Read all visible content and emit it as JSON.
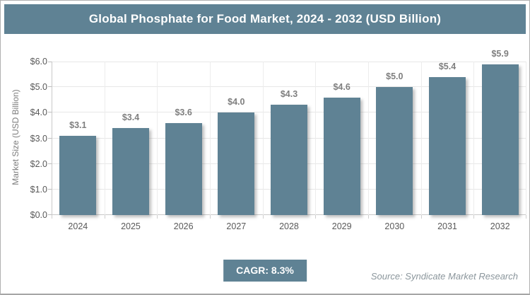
{
  "header": {
    "title": "Global Phosphate for Food Market, 2024 - 2032 (USD Billion)"
  },
  "chart_data": {
    "type": "bar",
    "title": "Global Phosphate for Food Market, 2024 - 2032 (USD Billion)",
    "categories": [
      "2024",
      "2025",
      "2026",
      "2027",
      "2028",
      "2029",
      "2030",
      "2031",
      "2032"
    ],
    "values": [
      3.1,
      3.4,
      3.6,
      4.0,
      4.3,
      4.6,
      5.0,
      5.4,
      5.9
    ],
    "value_labels": [
      "$3.1",
      "$3.4",
      "$3.6",
      "$4.0",
      "$4.3",
      "$4.6",
      "$5.0",
      "$5.4",
      "$5.9"
    ],
    "xlabel": "",
    "ylabel": "Market Size (USD Billion)",
    "ylim": [
      0,
      6
    ],
    "ytick_labels": [
      "$0.0",
      "$1.0",
      "$2.0",
      "$3.0",
      "$4.0",
      "$5.0",
      "$6.0"
    ],
    "grid": true,
    "legend": false,
    "bar_color": "#5f8294"
  },
  "footer": {
    "cagr_label": "CAGR: 8.3%",
    "source": "Source: Syndicate Market Research"
  },
  "colors": {
    "accent_slate": "#5f8294",
    "grid_line": "#e7e7e7",
    "axis_line": "#c9c9c9",
    "tick_text": "#595959",
    "value_label_text": "#7f7f7f",
    "source_text": "#8b969c",
    "frame_border": "#b0b0b0",
    "title_text": "#ffffff"
  }
}
